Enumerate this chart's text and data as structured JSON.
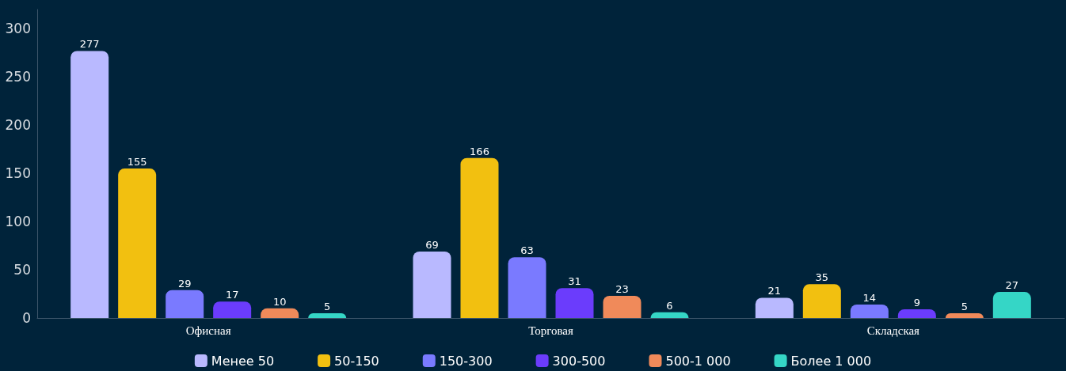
{
  "chart_data": {
    "type": "bar",
    "categories": [
      "Офисная",
      "Торговая",
      "Складская"
    ],
    "series": [
      {
        "name": "Менее 50",
        "color": "#b9b9ff",
        "values": [
          277,
          69,
          21
        ]
      },
      {
        "name": "50-150",
        "color": "#f2c010",
        "values": [
          155,
          166,
          35
        ]
      },
      {
        "name": "150-300",
        "color": "#7a7aff",
        "values": [
          29,
          63,
          14
        ]
      },
      {
        "name": "300-500",
        "color": "#6b3cfc",
        "values": [
          17,
          31,
          9
        ]
      },
      {
        "name": "500-1 000",
        "color": "#f08a5a",
        "values": [
          10,
          23,
          5
        ]
      },
      {
        "name": "Более 1 000",
        "color": "#35d6c6",
        "values": [
          5,
          6,
          27
        ]
      }
    ],
    "ylim": [
      0,
      320
    ],
    "yticks": [
      0,
      50,
      100,
      150,
      200,
      250,
      300
    ],
    "grid": false,
    "legend": "bottom",
    "data_labels": true
  }
}
